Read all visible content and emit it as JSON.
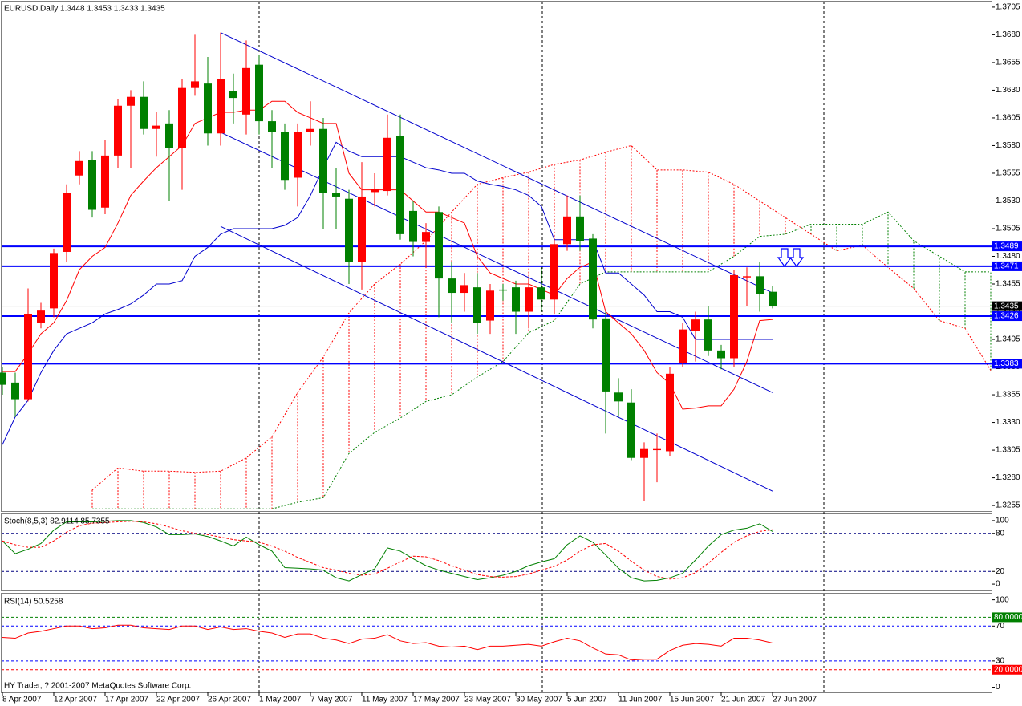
{
  "chart_data": [
    {
      "type": "candlestick",
      "title": "EURUSD,Daily  1.3448 1.3453 1.3433 1.3435",
      "categories": [
        "8 Apr 2007",
        null,
        null,
        null,
        "12 Apr 2007",
        null,
        null,
        null,
        "17 Apr 2007",
        null,
        null,
        null,
        "22 Apr 2007",
        null,
        null,
        null,
        "26 Apr 2007",
        null,
        null,
        null,
        "1 May 2007",
        null,
        null,
        null,
        "7 May 2007",
        null,
        null,
        null,
        "11 May 2007",
        null,
        null,
        null,
        "17 May 2007",
        null,
        null,
        null,
        "23 May 2007",
        null,
        null,
        null,
        "30 May 2007",
        null,
        null,
        null,
        "5 Jun 2007",
        null,
        null,
        null,
        "11 Jun 2007",
        null,
        null,
        null,
        "15 Jun 2007",
        null,
        null,
        null,
        "21 Jun 2007",
        null,
        null,
        null,
        "27 Jun 2007"
      ],
      "open": [
        1.3375,
        1.3366,
        1.3351,
        1.342,
        1.3433,
        1.3484,
        1.3553,
        1.3567,
        1.3524,
        1.3571,
        1.3616,
        1.3624,
        1.3595,
        1.36,
        1.3578,
        1.3632,
        1.3636,
        1.3591,
        1.3629,
        1.3608,
        1.3653,
        1.3602,
        1.3592,
        1.3551,
        1.3592,
        1.3595,
        1.3537,
        1.3532,
        1.3475,
        1.3538,
        1.3539,
        1.3589,
        1.3521,
        1.3493,
        1.352,
        1.346,
        1.3447,
        1.3452,
        1.3422,
        1.345,
        1.3452,
        1.343,
        1.3452,
        1.3441,
        1.3491,
        1.3516,
        1.3496,
        1.3424,
        1.3357,
        1.3348,
        1.3298,
        1.3305,
        1.3304,
        1.3384,
        1.3413,
        1.3423,
        1.3395,
        1.3388,
        1.3461,
        1.3462,
        1.3448
      ],
      "high": [
        1.338,
        1.3375,
        1.3451,
        1.3438,
        1.3487,
        1.3545,
        1.3575,
        1.3575,
        1.3585,
        1.3622,
        1.363,
        1.3638,
        1.361,
        1.3612,
        1.364,
        1.368,
        1.366,
        1.3682,
        1.3645,
        1.3675,
        1.3662,
        1.3612,
        1.36,
        1.36,
        1.362,
        1.3605,
        1.356,
        1.354,
        1.3565,
        1.3555,
        1.3608,
        1.3608,
        1.353,
        1.351,
        1.3525,
        1.3475,
        1.3465,
        1.3465,
        1.3455,
        1.3455,
        1.3458,
        1.346,
        1.347,
        1.3495,
        1.3535,
        1.3535,
        1.35,
        1.343,
        1.337,
        1.336,
        1.3312,
        1.332,
        1.338,
        1.342,
        1.343,
        1.3435,
        1.34,
        1.3468,
        1.347,
        1.3475,
        1.3453
      ],
      "low": [
        1.3355,
        1.3335,
        1.3349,
        1.3415,
        1.3425,
        1.3475,
        1.3545,
        1.3515,
        1.3518,
        1.356,
        1.356,
        1.359,
        1.357,
        1.353,
        1.354,
        1.3625,
        1.358,
        1.358,
        1.36,
        1.359,
        1.359,
        1.356,
        1.354,
        1.3525,
        1.358,
        1.3505,
        1.3505,
        1.3455,
        1.345,
        1.3525,
        1.3535,
        1.3495,
        1.348,
        1.347,
        1.3425,
        1.342,
        1.343,
        1.341,
        1.341,
        1.344,
        1.341,
        1.3415,
        1.343,
        1.3428,
        1.3485,
        1.3485,
        1.3415,
        1.332,
        1.3335,
        1.3296,
        1.3259,
        1.3276,
        1.33,
        1.338,
        1.3385,
        1.339,
        1.3378,
        1.338,
        1.3435,
        1.343,
        1.3433
      ],
      "close": [
        1.3364,
        1.3351,
        1.3428,
        1.3431,
        1.3483,
        1.3537,
        1.3566,
        1.3522,
        1.3571,
        1.3616,
        1.3624,
        1.3595,
        1.3598,
        1.3578,
        1.3632,
        1.3638,
        1.3591,
        1.364,
        1.3623,
        1.365,
        1.3602,
        1.3592,
        1.3549,
        1.3592,
        1.3595,
        1.3537,
        1.3534,
        1.3475,
        1.3534,
        1.3541,
        1.3587,
        1.35,
        1.3493,
        1.3502,
        1.346,
        1.3447,
        1.3454,
        1.342,
        1.3449,
        1.3449,
        1.343,
        1.3452,
        1.3441,
        1.3491,
        1.3516,
        1.3494,
        1.3423,
        1.3358,
        1.3349,
        1.3298,
        1.3306,
        1.3306,
        1.3374,
        1.3414,
        1.3423,
        1.3395,
        1.3388,
        1.3463,
        1.3462,
        1.3446,
        1.3435
      ],
      "up_color": "#ff0000",
      "down_color": "#008000",
      "xlim": [
        -0.0625,
        77.0625
      ],
      "ylim": [
        1.325,
        1.371
      ],
      "yticks": [
        1.3705,
        {
          "value": 1.368,
          "label": "1.3680"
        },
        1.3655,
        {
          "value": 1.363,
          "label": "1.3630"
        },
        1.3605,
        {
          "value": 1.358,
          "label": "1.3580"
        },
        1.3555,
        {
          "value": 1.353,
          "label": "1.3530"
        },
        1.3505,
        {
          "value": 1.348,
          "label": "1.3480"
        },
        1.3455,
        {
          "value": 1.343,
          "label": "1.3430"
        },
        1.3405,
        {
          "value": 1.338,
          "label": "1.3380"
        },
        1.3355,
        {
          "value": 1.333,
          "label": "1.3330"
        },
        1.3305,
        {
          "value": 1.328,
          "label": "1.3280"
        },
        1.3255
      ],
      "tenkan": {
        "color": "#ff0000",
        "values": [
          1.3376,
          1.3376,
          1.3392,
          1.341,
          1.342,
          1.344,
          1.3468,
          1.348,
          1.3488,
          1.351,
          1.3535,
          1.3548,
          1.356,
          1.357,
          1.358,
          1.36,
          1.3605,
          1.361,
          1.361,
          1.3612,
          1.3612,
          1.362,
          1.362,
          1.361,
          1.3605,
          1.36,
          1.36,
          1.3555,
          1.354,
          1.354,
          1.354,
          1.354,
          1.353,
          1.352,
          1.352,
          1.3515,
          1.351,
          1.348,
          1.3465,
          1.346,
          1.3455,
          1.3455,
          1.345,
          1.3445,
          1.346,
          1.347,
          1.3475,
          1.343,
          1.342,
          1.341,
          1.3395,
          1.3375,
          1.3365,
          1.3342,
          1.3343,
          1.3345,
          1.3345,
          1.336,
          1.3385,
          1.3422,
          1.3423
        ]
      },
      "kijun": {
        "color": "#0000cd",
        "values": [
          1.331,
          1.3335,
          1.335,
          1.3375,
          1.3395,
          1.341,
          1.3415,
          1.342,
          1.3428,
          1.3432,
          1.3437,
          1.3445,
          1.3455,
          1.3455,
          1.3458,
          1.348,
          1.3488,
          1.35,
          1.3505,
          1.3505,
          1.3505,
          1.3505,
          1.3508,
          1.3515,
          1.3535,
          1.356,
          1.3583,
          1.3575,
          1.357,
          1.357,
          1.357,
          1.357,
          1.3565,
          1.356,
          1.3558,
          1.3555,
          1.3555,
          1.3548,
          1.3545,
          1.3543,
          1.354,
          1.3535,
          1.3525,
          1.3495,
          1.3495,
          1.3495,
          1.3495,
          1.3465,
          1.3465,
          1.3455,
          1.3445,
          1.343,
          1.343,
          1.3425,
          1.3405,
          1.3405,
          1.3405,
          1.3405,
          1.3405,
          1.3405,
          1.3405
        ]
      },
      "cloud": {
        "x": [
          7,
          9,
          11,
          13,
          15,
          17,
          19,
          21,
          23,
          25,
          27,
          29,
          31,
          33,
          35,
          37,
          39,
          41,
          43,
          45,
          47,
          49,
          51,
          53,
          55,
          57,
          59,
          61,
          63,
          65,
          67,
          69,
          71,
          73,
          75,
          77
        ],
        "span_a": [
          1.3269,
          1.3289,
          1.3286,
          1.3286,
          1.3285,
          1.3286,
          1.3298,
          1.3317,
          1.3357,
          1.3389,
          1.3429,
          1.3455,
          1.3473,
          1.3494,
          1.352,
          1.3545,
          1.3551,
          1.3556,
          1.3563,
          1.3567,
          1.3574,
          1.358,
          1.3558,
          1.3558,
          1.3556,
          1.3545,
          1.353,
          1.3515,
          1.35,
          1.3485,
          1.349,
          1.347,
          1.3451,
          1.3422,
          1.3415,
          1.3377
        ],
        "span_b": [
          1.3252,
          1.3252,
          1.3252,
          1.3252,
          1.3252,
          1.3252,
          1.3252,
          1.3252,
          1.3258,
          1.3262,
          1.3302,
          1.3321,
          1.3334,
          1.3349,
          1.3355,
          1.3371,
          1.3385,
          1.3411,
          1.3422,
          1.3455,
          1.3466,
          1.3466,
          1.3466,
          1.3466,
          1.3466,
          1.348,
          1.3498,
          1.35,
          1.3509,
          1.3509,
          1.3509,
          1.352,
          1.3494,
          1.348,
          1.3466,
          1.3466
        ],
        "span_a_color": "#ff0000",
        "span_b_color": "#008000"
      },
      "trendlines": [
        {
          "x": [
            17,
            60
          ],
          "values": [
            1.3682,
            1.3447
          ],
          "color": "#0000cd"
        },
        {
          "x": [
            17,
            60
          ],
          "values": [
            1.3592,
            1.3357
          ],
          "color": "#0000cd"
        },
        {
          "x": [
            17,
            60
          ],
          "values": [
            1.3507,
            1.3268
          ],
          "color": "#0000cd"
        }
      ],
      "levels": [
        {
          "value": 1.3489,
          "color": "#0000ff"
        },
        {
          "value": 1.3471,
          "color": "#0000ff"
        },
        {
          "value": 1.3426,
          "color": "#0000ff"
        },
        {
          "value": 1.3383,
          "color": "#0000ff"
        }
      ],
      "current_price": 1.3435
    },
    {
      "type": "line",
      "title": "Stoch(8,5,3) 82.9114 85.7355",
      "ylim": [
        -10,
        110
      ],
      "yticks": [
        100,
        80,
        20,
        0
      ],
      "levels": [
        80,
        20
      ],
      "level_color": "#000080",
      "series": [
        {
          "color": "#008000",
          "values": [
            68,
            48,
            55,
            64,
            85,
            98,
            98,
            98,
            99,
            100,
            100,
            97,
            90,
            78,
            78,
            79,
            75,
            68,
            60,
            74,
            62,
            52,
            26,
            25,
            24,
            22,
            10,
            5,
            15,
            24,
            57,
            52,
            40,
            29,
            22,
            17,
            12,
            7,
            10,
            14,
            20,
            29,
            35,
            40,
            62,
            76,
            66,
            46,
            25,
            10,
            5,
            6,
            10,
            17,
            38,
            60,
            78,
            85,
            88,
            95,
            82.9114
          ]
        },
        {
          "color": "#ff0000",
          "dashed": true,
          "values": [
            68,
            62,
            58,
            58,
            68,
            82,
            92,
            96,
            97,
            98,
            99,
            98,
            95,
            90,
            84,
            80,
            78,
            74,
            70,
            68,
            66,
            60,
            52,
            42,
            34,
            26,
            22,
            17,
            14,
            16,
            25,
            35,
            44,
            43,
            37,
            29,
            22,
            15,
            12,
            11,
            12,
            16,
            22,
            28,
            38,
            52,
            62,
            64,
            52,
            36,
            22,
            12,
            8,
            10,
            18,
            33,
            50,
            66,
            76,
            83,
            85.7355
          ]
        }
      ]
    },
    {
      "type": "line",
      "title": "RSI(14) 50.5258",
      "footer": "HY Trader, ? 2001-2007 MetaQuotes Software Corp.",
      "ylim": [
        -5,
        107
      ],
      "yticks": [
        100,
        70,
        30,
        0
      ],
      "levels": [
        {
          "value": 80,
          "label": "80.0000",
          "color": "#008000"
        },
        {
          "value": 70,
          "color": "#0000ff"
        },
        {
          "value": 30,
          "color": "#0000ff"
        },
        {
          "value": 20,
          "label": "20.0000",
          "color": "#ff0000"
        }
      ],
      "series": [
        {
          "color": "#ff0000",
          "values": [
            57,
            56,
            62,
            64,
            67,
            70,
            70,
            67,
            68,
            71,
            71,
            68,
            67,
            66,
            70,
            70,
            66,
            69,
            66,
            67,
            64,
            62,
            57,
            61,
            61,
            56,
            54,
            50,
            55,
            56,
            60,
            53,
            50,
            51,
            47,
            46,
            47,
            43,
            47,
            47,
            48,
            49,
            47,
            52,
            56,
            53,
            45,
            38,
            37,
            31,
            32,
            32,
            42,
            48,
            50,
            49,
            47,
            56,
            56,
            54,
            50.5258
          ]
        }
      ]
    }
  ]
}
